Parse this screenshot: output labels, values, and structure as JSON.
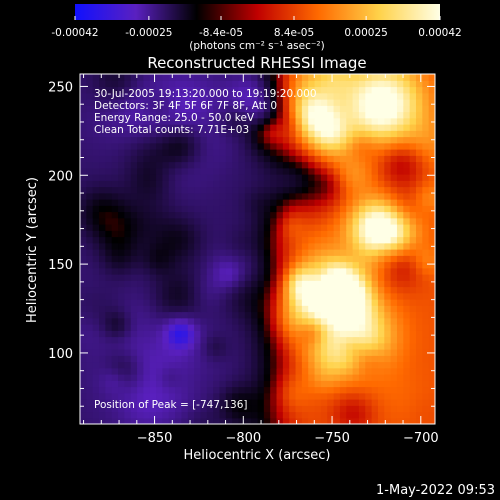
{
  "colorbar": {
    "tick_labels": [
      "-0.00042",
      "-0.00025",
      "-8.4e-05",
      "8.4e-05",
      "0.00025",
      "0.00042"
    ],
    "tick_values": [
      -0.00042,
      -0.00025,
      -8.4e-05,
      8.4e-05,
      0.00025,
      0.00042
    ],
    "range": [
      -0.00042,
      0.00042
    ],
    "unit_label": "(photons cm⁻² s⁻¹ asec⁻²)",
    "colors": [
      "#1010ff",
      "#5a20c0",
      "#000000",
      "#c00000",
      "#ff6a00",
      "#ffd24a",
      "#ffffe6"
    ]
  },
  "chart_data": {
    "type": "heatmap",
    "title": "Reconstructed RHESSI Image",
    "xlabel": "Heliocentric X (arcsec)",
    "ylabel": "Heliocentric Y (arcsec)",
    "xlim": [
      -892,
      -692
    ],
    "ylim": [
      60,
      257
    ],
    "x_ticks": [
      -850,
      -800,
      -750,
      -700
    ],
    "y_ticks": [
      100,
      150,
      200,
      250
    ],
    "x_tick_labels": [
      "−850",
      "−800",
      "−750",
      "−700"
    ],
    "y_tick_labels": [
      "100",
      "150",
      "200",
      "250"
    ],
    "annotations": [
      "30-Jul-2005 19:13:20.000 to 19:19:20.000",
      "Detectors: 3F 4F 5F 6F 7F 8F, Att 0",
      "Energy Range: 25.0 - 50.0 keV",
      "Clean     Total counts: 7.71E+03"
    ],
    "peak_label": "Position of Peak = [-747,136]",
    "peak": {
      "x": -747,
      "y": 136
    },
    "grid_nx": 56,
    "grid_ny": 56,
    "grid": false
  },
  "footer": {
    "timestamp": "1-May-2022 09:53"
  }
}
